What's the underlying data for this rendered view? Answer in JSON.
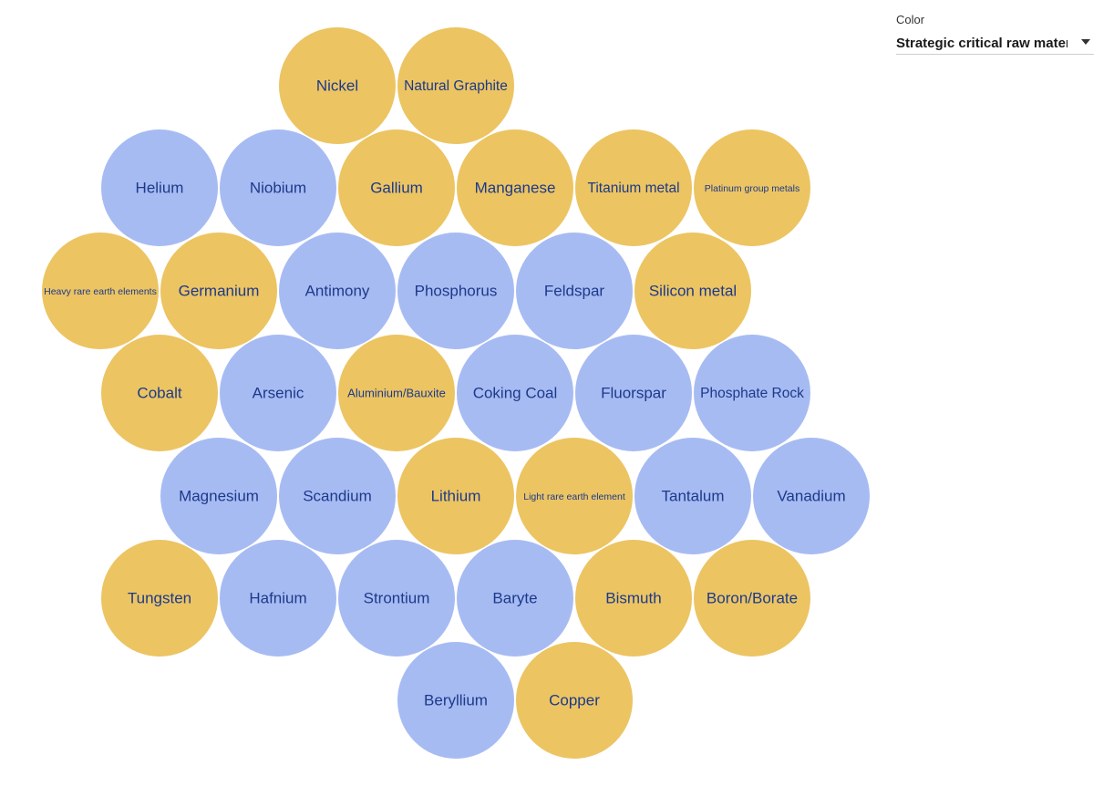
{
  "controls": {
    "color": {
      "label": "Color",
      "selected": "Strategic critical raw materials"
    }
  },
  "colors": {
    "strategic": "#ecc462",
    "non_strategic": "#a7bbf3",
    "label_text": "#1c3a8a"
  },
  "chart_data": {
    "type": "bubble-grid",
    "rows": [
      [
        {
          "label": "Nickel",
          "strategic": true
        },
        {
          "label": "Natural Graphite",
          "strategic": true
        }
      ],
      [
        {
          "label": "Helium",
          "strategic": false
        },
        {
          "label": "Niobium",
          "strategic": false
        },
        {
          "label": "Gallium",
          "strategic": true
        },
        {
          "label": "Manganese",
          "strategic": true
        },
        {
          "label": "Titanium metal",
          "strategic": true
        },
        {
          "label": "Platinum group metals",
          "strategic": true
        }
      ],
      [
        {
          "label": "Heavy rare earth elements",
          "strategic": true
        },
        {
          "label": "Germanium",
          "strategic": true
        },
        {
          "label": "Antimony",
          "strategic": false
        },
        {
          "label": "Phosphorus",
          "strategic": false
        },
        {
          "label": "Feldspar",
          "strategic": false
        },
        {
          "label": "Silicon metal",
          "strategic": true
        }
      ],
      [
        {
          "label": "Cobalt",
          "strategic": true
        },
        {
          "label": "Arsenic",
          "strategic": false
        },
        {
          "label": "Aluminium/Bauxite",
          "strategic": true
        },
        {
          "label": "Coking Coal",
          "strategic": false
        },
        {
          "label": "Fluorspar",
          "strategic": false
        },
        {
          "label": "Phosphate Rock",
          "strategic": false
        }
      ],
      [
        {
          "label": "Magnesium",
          "strategic": false
        },
        {
          "label": "Scandium",
          "strategic": false
        },
        {
          "label": "Lithium",
          "strategic": true
        },
        {
          "label": "Light rare earth element",
          "strategic": true
        },
        {
          "label": "Tantalum",
          "strategic": false
        },
        {
          "label": "Vanadium",
          "strategic": false
        }
      ],
      [
        {
          "label": "Tungsten",
          "strategic": true
        },
        {
          "label": "Hafnium",
          "strategic": false
        },
        {
          "label": "Strontium",
          "strategic": false
        },
        {
          "label": "Baryte",
          "strategic": false
        },
        {
          "label": "Bismuth",
          "strategic": true
        },
        {
          "label": "Boron/Borate",
          "strategic": true
        }
      ],
      [
        {
          "label": "Beryllium",
          "strategic": false
        },
        {
          "label": "Copper",
          "strategic": true
        }
      ]
    ]
  }
}
